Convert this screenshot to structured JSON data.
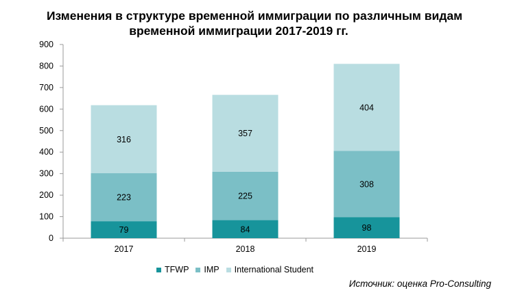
{
  "title_line1": "Изменения в структуре временной иммиграции по различным видам",
  "title_line2": "временной иммиграции 2017-2019 гг.",
  "source": "Источник: оценка Pro-Consulting",
  "colors": {
    "tfwp": "#17949b",
    "imp": "#7bbfc6",
    "student": "#b9dde1"
  },
  "chart_data": {
    "type": "bar",
    "stacked": true,
    "categories": [
      "2017",
      "2018",
      "2019"
    ],
    "series": [
      {
        "name": "TFWP",
        "values": [
          79,
          84,
          98
        ]
      },
      {
        "name": "IMP",
        "values": [
          223,
          225,
          308
        ]
      },
      {
        "name": "International Student",
        "values": [
          316,
          357,
          404
        ]
      }
    ],
    "ylim": [
      0,
      900
    ],
    "yticks": [
      "0",
      "100",
      "200",
      "300",
      "400",
      "500",
      "600",
      "700",
      "800",
      "900"
    ],
    "grid": false,
    "legend_position": "bottom"
  }
}
